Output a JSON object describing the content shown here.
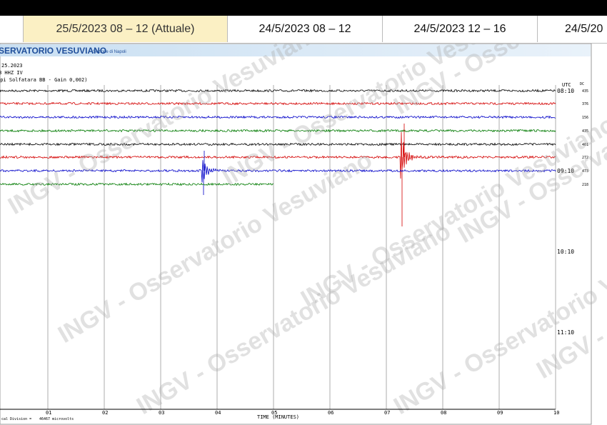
{
  "tabs": [
    "25/5/2023 08 – 12 (Attuale)",
    "24/5/2023 08 – 12",
    "24/5/2023 12 – 16",
    "24/5/20"
  ],
  "header": {
    "title": "SERVATORIO VESUVIANO",
    "subtitle": "Sezione di Napoli"
  },
  "info": [
    "25.2023",
    "B HHZ IV",
    "mpi Solfatara BB - Gain 0,002)"
  ],
  "right_axis": {
    "title": "UTC",
    "unit": "DC",
    "times": [
      "08:10",
      "09:10",
      "10:10",
      "11:10"
    ],
    "trace_values": [
      435,
      376,
      156,
      435,
      461,
      272,
      473,
      218
    ]
  },
  "x_axis": {
    "title": "TIME (MINUTES)",
    "ticks": [
      "01",
      "02",
      "03",
      "04",
      "05",
      "06",
      "07",
      "08",
      "09",
      "10"
    ]
  },
  "footer": [
    "cal Division =",
    "46467 microvolts"
  ],
  "watermark": "INGV - Osservatorio Vesuviano"
}
